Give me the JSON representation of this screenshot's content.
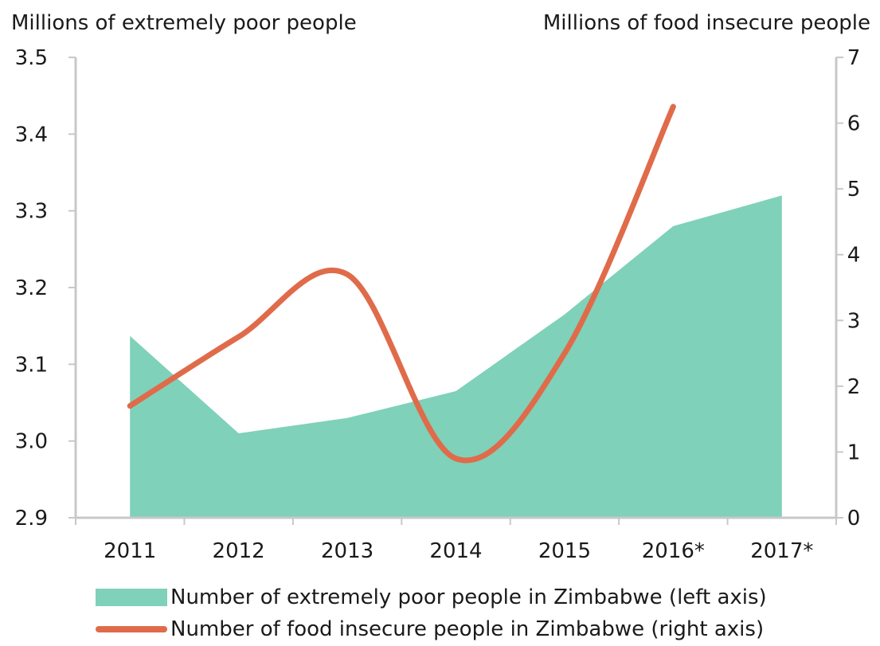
{
  "chart_data": {
    "type": "area+line",
    "categories": [
      "2011",
      "2012",
      "2013",
      "2014",
      "2015",
      "2016*",
      "2017*"
    ],
    "left_axis": {
      "title": "Millions of extremely poor people",
      "ylim": [
        2.9,
        3.5
      ],
      "ticks": [
        "2.9",
        "3.0",
        "3.1",
        "3.2",
        "3.3",
        "3.4",
        "3.5"
      ]
    },
    "right_axis": {
      "title": "Millions of food insecure people",
      "ylim": [
        0,
        7
      ],
      "ticks": [
        "0",
        "1",
        "2",
        "3",
        "4",
        "5",
        "6",
        "7"
      ]
    },
    "series": [
      {
        "name": "Number of extremely poor people in Zimbabwe (left axis)",
        "type": "area",
        "axis": "left",
        "color": "#7fd1b9",
        "x": [
          2011,
          2012,
          2013,
          2014,
          2015,
          2016,
          2017
        ],
        "values": [
          3.137,
          3.01,
          3.03,
          3.065,
          3.165,
          3.28,
          3.32
        ]
      },
      {
        "name": "Number of food insecure people in Zimbabwe (right axis)",
        "type": "line",
        "axis": "right",
        "color": "#e06b4a",
        "x": [
          2011,
          2012,
          2013,
          2014,
          2015,
          2016
        ],
        "values": [
          1.7,
          2.75,
          3.7,
          0.9,
          2.5,
          6.25
        ]
      }
    ],
    "grid": false,
    "legend_position": "bottom"
  }
}
